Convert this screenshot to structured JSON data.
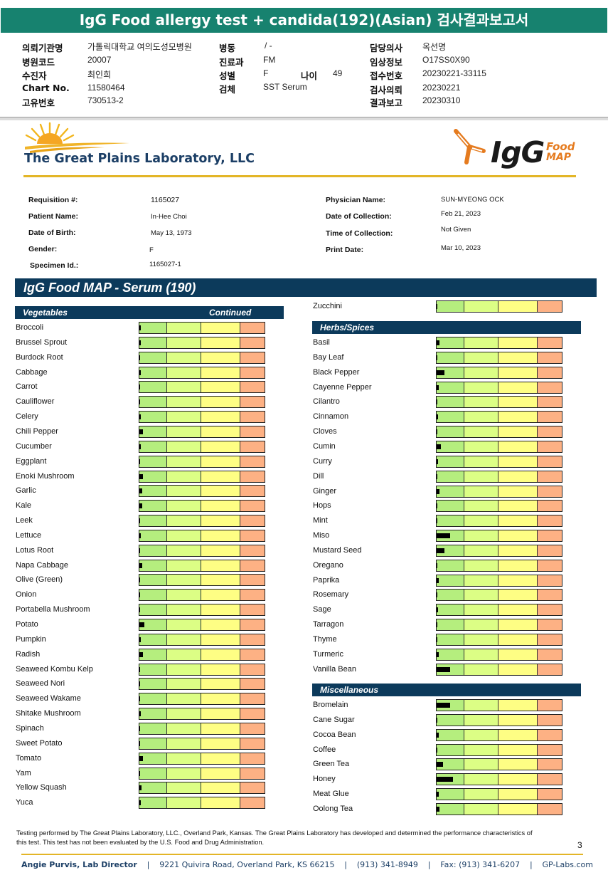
{
  "report_title": "IgG Food allergy test + candida(192)(Asian) 검사결과보고서",
  "hospital_info": {
    "institution": {
      "label": "의뢰기관명",
      "value": "가톨릭대학교 여의도성모병원"
    },
    "hospital_code": {
      "label": "병원코드",
      "value": "20007"
    },
    "patient": {
      "label": "수진자",
      "value": "최인희"
    },
    "chart_no": {
      "label": "Chart No.",
      "value": "11580464"
    },
    "unique_no": {
      "label": "고유번호",
      "value": "730513-2"
    },
    "ward": {
      "label": "병동",
      "value": "/ -"
    },
    "department": {
      "label": "진료과",
      "value": "FM"
    },
    "sex": {
      "label": "성별",
      "value": "F"
    },
    "age": {
      "label": "나이",
      "value": "49"
    },
    "specimen": {
      "label": "검체",
      "value": "SST Serum"
    },
    "doctor": {
      "label": "담당의사",
      "value": "옥선명"
    },
    "clinical_info": {
      "label": "임상정보",
      "value": "O17SS0X90"
    },
    "receipt_no": {
      "label": "접수번호",
      "value": "20230221-33115"
    },
    "request_date": {
      "label": "검사의뢰",
      "value": "20230221"
    },
    "report_date": {
      "label": "결과보고",
      "value": "20230310"
    }
  },
  "lab_name": "The Great Plains Laboratory, LLC",
  "brand": {
    "igg": "IgG",
    "food": "Food",
    "map": "MAP"
  },
  "patient_fields": {
    "requisition": {
      "label": "Requisition #:",
      "value": "1165027"
    },
    "patient_name": {
      "label": "Patient Name:",
      "value": "In-Hee Choi"
    },
    "dob": {
      "label": "Date of Birth:",
      "value": "May 13, 1973"
    },
    "gender": {
      "label": "Gender:",
      "value": "F"
    },
    "specimen_id": {
      "label": "Specimen Id.:",
      "value": "1165027-1"
    },
    "physician": {
      "label": "Physician Name:",
      "value": "SUN-MYEONG OCK"
    },
    "collection_date": {
      "label": "Date of Collection:",
      "value": "Feb 21, 2023"
    },
    "collection_time": {
      "label": "Time of Collection:",
      "value": "Not Given"
    },
    "print_date": {
      "label": "Print Date:",
      "value": "Mar 10, 2023"
    }
  },
  "map_title": "IgG Food MAP - Serum (190)",
  "colors": {
    "header_green": "#17826f",
    "navy": "#0c3a5b",
    "gold": "#e3b527",
    "zone1": "#b5ee7e",
    "zone2": "#dcfe85",
    "zone3": "#fefe84",
    "zone4": "#fdb184"
  },
  "vegetables": {
    "title": "Vegetables",
    "subtitle": "Continued",
    "items": [
      {
        "name": "Broccoli",
        "level": 0.01
      },
      {
        "name": "Brussel Sprout",
        "level": 0.01
      },
      {
        "name": "Burdock Root",
        "level": 0.005
      },
      {
        "name": "Cabbage",
        "level": 0.01
      },
      {
        "name": "Carrot",
        "level": 0.005
      },
      {
        "name": "Cauliflower",
        "level": 0.005
      },
      {
        "name": "Celery",
        "level": 0.01
      },
      {
        "name": "Chili Pepper",
        "level": 0.03
      },
      {
        "name": "Cucumber",
        "level": 0.01
      },
      {
        "name": "Eggplant",
        "level": 0.003
      },
      {
        "name": "Enoki Mushroom",
        "level": 0.03
      },
      {
        "name": "Garlic",
        "level": 0.025
      },
      {
        "name": "Kale",
        "level": 0.02
      },
      {
        "name": "Leek",
        "level": 0.003
      },
      {
        "name": "Lettuce",
        "level": 0.01
      },
      {
        "name": "Lotus Root",
        "level": 0.003
      },
      {
        "name": "Napa Cabbage",
        "level": 0.025
      },
      {
        "name": "Olive (Green)",
        "level": 0.003
      },
      {
        "name": "Onion",
        "level": 0.003
      },
      {
        "name": "Portabella Mushroom",
        "level": 0.003
      },
      {
        "name": "Potato",
        "level": 0.04
      },
      {
        "name": "Pumpkin",
        "level": 0.01
      },
      {
        "name": "Radish",
        "level": 0.03
      },
      {
        "name": "Seaweed Kombu Kelp",
        "level": 0.003
      },
      {
        "name": "Seaweed Nori",
        "level": 0.003
      },
      {
        "name": "Seaweed Wakame",
        "level": 0.003
      },
      {
        "name": "Shitake Mushroom",
        "level": 0.01
      },
      {
        "name": "Spinach",
        "level": 0.003
      },
      {
        "name": "Sweet Potato",
        "level": 0.003
      },
      {
        "name": "Tomato",
        "level": 0.03
      },
      {
        "name": "Yam",
        "level": 0.003
      },
      {
        "name": "Yellow Squash",
        "level": 0.015
      },
      {
        "name": "Yuca",
        "level": 0.01
      }
    ]
  },
  "zucchini": {
    "name": "Zucchini",
    "level": 0.003
  },
  "herbs_spices": {
    "title": "Herbs/Spices",
    "items": [
      {
        "name": "Basil",
        "level": 0.02
      },
      {
        "name": "Bay Leaf",
        "level": 0.003
      },
      {
        "name": "Black Pepper",
        "level": 0.065
      },
      {
        "name": "Cayenne Pepper",
        "level": 0.015
      },
      {
        "name": "Cilantro",
        "level": 0.003
      },
      {
        "name": "Cinnamon",
        "level": 0.01
      },
      {
        "name": "Cloves",
        "level": 0.003
      },
      {
        "name": "Cumin",
        "level": 0.035
      },
      {
        "name": "Curry",
        "level": 0.01
      },
      {
        "name": "Dill",
        "level": 0.003
      },
      {
        "name": "Ginger",
        "level": 0.02
      },
      {
        "name": "Hops",
        "level": 0.003
      },
      {
        "name": "Mint",
        "level": 0.003
      },
      {
        "name": "Miso",
        "level": 0.11
      },
      {
        "name": "Mustard Seed",
        "level": 0.065
      },
      {
        "name": "Oregano",
        "level": 0.003
      },
      {
        "name": "Paprika",
        "level": 0.015
      },
      {
        "name": "Rosemary",
        "level": 0.003
      },
      {
        "name": "Sage",
        "level": 0.01
      },
      {
        "name": "Tarragon",
        "level": 0.003
      },
      {
        "name": "Thyme",
        "level": 0.003
      },
      {
        "name": "Turmeric",
        "level": 0.015
      },
      {
        "name": "Vanilla Bean",
        "level": 0.11
      }
    ]
  },
  "miscellaneous": {
    "title": "Miscellaneous",
    "items": [
      {
        "name": "Bromelain",
        "level": 0.11
      },
      {
        "name": "Cane Sugar",
        "level": 0.003
      },
      {
        "name": "Cocoa Bean",
        "level": 0.015
      },
      {
        "name": "Coffee",
        "level": 0.003
      },
      {
        "name": "Green Tea",
        "level": 0.05
      },
      {
        "name": "Honey",
        "level": 0.13
      },
      {
        "name": "Meat Glue",
        "level": 0.015
      },
      {
        "name": "Oolong Tea",
        "level": 0.02
      }
    ]
  },
  "disclaimer": "Testing performed by The Great Plains Laboratory, LLC., Overland Park, Kansas. The Great Plains Laboratory has developed and determined the performance characteristics of this test. This test has not been evaluated by the U.S. Food and Drug Administration.",
  "page_number": "3",
  "footer": {
    "director": "Angie Purvis, Lab Director",
    "address": "9221 Quivira Road, Overland Park, KS 66215",
    "phone": "(913) 341-8949",
    "fax": "Fax: (913) 341-6207",
    "website": "GP-Labs.com",
    "separator": "|"
  }
}
